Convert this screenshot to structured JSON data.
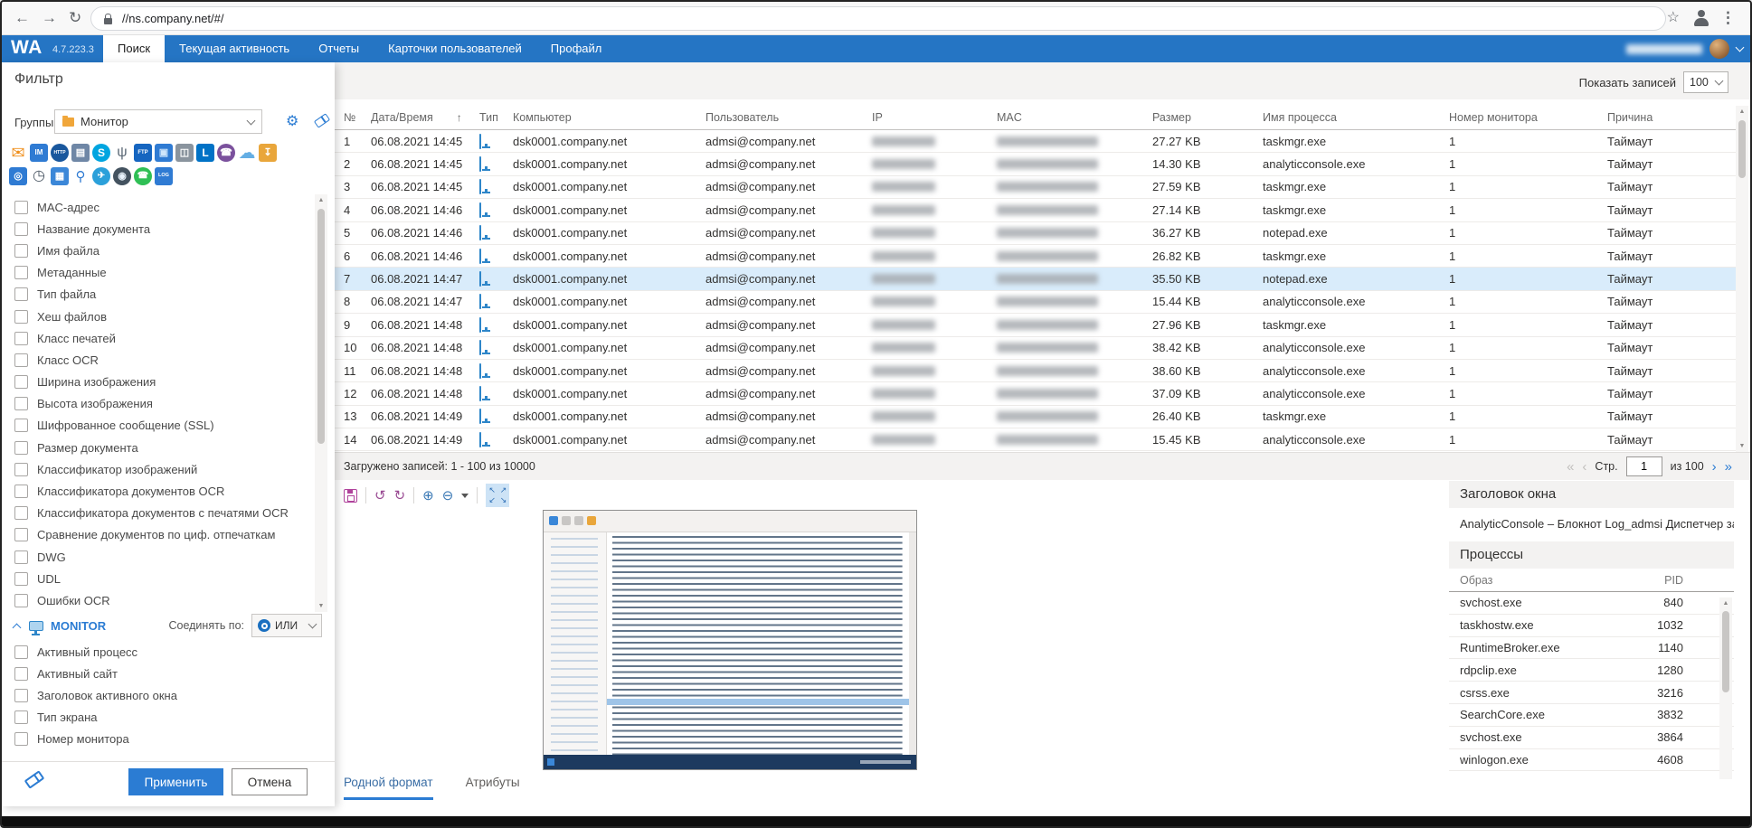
{
  "browser": {
    "url": "//ns.company.net/#/"
  },
  "navbar": {
    "logo": "WA",
    "version": "4.7.223.3",
    "tabs": [
      "Поиск",
      "Текущая активность",
      "Отчеты",
      "Карточки пользователей",
      "Профайл"
    ],
    "active_tab": "Поиск"
  },
  "filter": {
    "title": "Фильтр",
    "groups_label": "Группы",
    "groups_value": "Монитор",
    "channel_icons_row1": [
      {
        "name": "mail-icon",
        "glyph": "✉",
        "bg": "",
        "fg": "#ef8f1c",
        "fs": 18
      },
      {
        "name": "im-icon",
        "glyph": "IM",
        "bg": "#2f7bd3",
        "fg": "#ffffff",
        "fs": 8
      },
      {
        "name": "http-icon",
        "glyph": "HTTP",
        "bg": "#19579d",
        "fg": "#ffffff",
        "fs": 5,
        "round": true
      },
      {
        "name": "printer-icon",
        "glyph": "▤",
        "bg": "#6f87a6",
        "fg": "#ffffff",
        "fs": 11
      },
      {
        "name": "skype-icon",
        "glyph": "S",
        "bg": "#00a5e0",
        "fg": "#ffffff",
        "fs": 12,
        "round": true
      },
      {
        "name": "usb-icon",
        "glyph": "ψ",
        "bg": "",
        "fg": "#5d6a77",
        "fs": 16
      },
      {
        "name": "ftp-icon",
        "glyph": "FTP",
        "bg": "#1565c0",
        "fg": "#ffffff",
        "fs": 6
      },
      {
        "name": "network-icon",
        "glyph": "▣",
        "bg": "#2f7bd3",
        "fg": "#cfe6fb",
        "fs": 11
      },
      {
        "name": "device-clock-icon",
        "glyph": "◫",
        "bg": "#8a949e",
        "fg": "#ffffff",
        "fs": 11
      },
      {
        "name": "lync-icon",
        "glyph": "L",
        "bg": "#0072c6",
        "fg": "#ffffff",
        "fs": 12
      },
      {
        "name": "viber-icon",
        "glyph": "☎",
        "bg": "#7b519d",
        "fg": "#ffffff",
        "fs": 11,
        "round": true
      },
      {
        "name": "cloud-icon",
        "glyph": "☁",
        "bg": "",
        "fg": "#64aee4",
        "fs": 19
      },
      {
        "name": "folder-import-icon",
        "glyph": "↧",
        "bg": "#e9a63b",
        "fg": "#ffffff",
        "fs": 11
      }
    ],
    "channel_icons_row2": [
      {
        "name": "monitor-search-icon",
        "glyph": "◎",
        "bg": "#2f7bd3",
        "fg": "#ffffff",
        "fs": 11
      },
      {
        "name": "clock-icon",
        "glyph": "◷",
        "bg": "",
        "fg": "#4d5966",
        "fs": 16
      },
      {
        "name": "calendar-info-icon",
        "glyph": "▦",
        "bg": "#3b87d8",
        "fg": "#ffffff",
        "fs": 11
      },
      {
        "name": "microphone-icon",
        "glyph": "⚲",
        "bg": "",
        "fg": "#2f7bd3",
        "fs": 15
      },
      {
        "name": "telegram-icon",
        "glyph": "✈",
        "bg": "#2ba0da",
        "fg": "#ffffff",
        "fs": 10,
        "round": true
      },
      {
        "name": "webcam-icon",
        "glyph": "◉",
        "bg": "#43525f",
        "fg": "#e8f2fb",
        "fs": 11,
        "round": true
      },
      {
        "name": "whatsapp-icon",
        "glyph": "☎",
        "bg": "#2fbf55",
        "fg": "#ffffff",
        "fs": 10,
        "round": true
      },
      {
        "name": "log-monitor-icon",
        "glyph": "LOG",
        "bg": "#2f7bd3",
        "fg": "#ffffff",
        "fs": 5.5
      }
    ],
    "checkboxes": [
      "MAC-адрес",
      "Название документа",
      "Имя файла",
      "Метаданные",
      "Тип файла",
      "Хеш файлов",
      "Класс печатей",
      "Класс OCR",
      "Ширина изображения",
      "Высота изображения",
      "Шифрованное сообщение (SSL)",
      "Размер документа",
      "Классификатор изображений",
      "Классификатора документов OCR",
      "Классификатора документов с печатями OCR",
      "Сравнение документов по циф. отпечаткам",
      "DWG",
      "UDL",
      "Ошибки OCR"
    ],
    "monitor_section": {
      "label": "MONITOR",
      "join_label": "Соединять по:",
      "join_value": "ИЛИ",
      "items": [
        "Активный процесс",
        "Активный сайт",
        "Заголовок активного окна",
        "Тип экрана",
        "Номер монитора"
      ]
    },
    "apply_label": "Применить",
    "cancel_label": "Отмена"
  },
  "results": {
    "show_records_label": "Показать записей",
    "show_records_value": "100",
    "columns": [
      "№",
      "Дата/Время",
      "Тип",
      "Компьютер",
      "Пользователь",
      "IP",
      "MAC",
      "Размер",
      "Имя процесса",
      "Номер монитора",
      "Причина"
    ],
    "selected_row_num": "7",
    "rows": [
      {
        "num": "1",
        "datetime": "06.08.2021 14:45",
        "computer": "dsk0001.company.net",
        "user": "admsi@company.net",
        "size": "27.27 KB",
        "process": "taskmgr.exe",
        "monitor": "1",
        "reason": "Таймаут"
      },
      {
        "num": "2",
        "datetime": "06.08.2021 14:45",
        "computer": "dsk0001.company.net",
        "user": "admsi@company.net",
        "size": "14.30 KB",
        "process": "analyticconsole.exe",
        "monitor": "1",
        "reason": "Таймаут"
      },
      {
        "num": "3",
        "datetime": "06.08.2021 14:45",
        "computer": "dsk0001.company.net",
        "user": "admsi@company.net",
        "size": "27.59 KB",
        "process": "taskmgr.exe",
        "monitor": "1",
        "reason": "Таймаут"
      },
      {
        "num": "4",
        "datetime": "06.08.2021 14:46",
        "computer": "dsk0001.company.net",
        "user": "admsi@company.net",
        "size": "27.14 KB",
        "process": "taskmgr.exe",
        "monitor": "1",
        "reason": "Таймаут"
      },
      {
        "num": "5",
        "datetime": "06.08.2021 14:46",
        "computer": "dsk0001.company.net",
        "user": "admsi@company.net",
        "size": "36.27 KB",
        "process": "notepad.exe",
        "monitor": "1",
        "reason": "Таймаут"
      },
      {
        "num": "6",
        "datetime": "06.08.2021 14:46",
        "computer": "dsk0001.company.net",
        "user": "admsi@company.net",
        "size": "26.82 KB",
        "process": "taskmgr.exe",
        "monitor": "1",
        "reason": "Таймаут"
      },
      {
        "num": "7",
        "datetime": "06.08.2021 14:47",
        "computer": "dsk0001.company.net",
        "user": "admsi@company.net",
        "size": "35.50 KB",
        "process": "notepad.exe",
        "monitor": "1",
        "reason": "Таймаут"
      },
      {
        "num": "8",
        "datetime": "06.08.2021 14:47",
        "computer": "dsk0001.company.net",
        "user": "admsi@company.net",
        "size": "15.44 KB",
        "process": "analyticconsole.exe",
        "monitor": "1",
        "reason": "Таймаут"
      },
      {
        "num": "9",
        "datetime": "06.08.2021 14:48",
        "computer": "dsk0001.company.net",
        "user": "admsi@company.net",
        "size": "27.96 KB",
        "process": "taskmgr.exe",
        "monitor": "1",
        "reason": "Таймаут"
      },
      {
        "num": "10",
        "datetime": "06.08.2021 14:48",
        "computer": "dsk0001.company.net",
        "user": "admsi@company.net",
        "size": "38.42 KB",
        "process": "analyticconsole.exe",
        "monitor": "1",
        "reason": "Таймаут"
      },
      {
        "num": "11",
        "datetime": "06.08.2021 14:48",
        "computer": "dsk0001.company.net",
        "user": "admsi@company.net",
        "size": "38.60 KB",
        "process": "analyticconsole.exe",
        "monitor": "1",
        "reason": "Таймаут"
      },
      {
        "num": "12",
        "datetime": "06.08.2021 14:48",
        "computer": "dsk0001.company.net",
        "user": "admsi@company.net",
        "size": "37.09 KB",
        "process": "analyticconsole.exe",
        "monitor": "1",
        "reason": "Таймаут"
      },
      {
        "num": "13",
        "datetime": "06.08.2021 14:49",
        "computer": "dsk0001.company.net",
        "user": "admsi@company.net",
        "size": "26.40 KB",
        "process": "taskmgr.exe",
        "monitor": "1",
        "reason": "Таймаут"
      },
      {
        "num": "14",
        "datetime": "06.08.2021 14:49",
        "computer": "dsk0001.company.net",
        "user": "admsi@company.net",
        "size": "15.45 KB",
        "process": "analyticconsole.exe",
        "monitor": "1",
        "reason": "Таймаут"
      }
    ],
    "footer": {
      "loaded_text": "Загружено записей: 1 - 100 из 10000",
      "page_label": "Стр.",
      "page_value": "1",
      "pages_total": "из 100"
    }
  },
  "preview": {
    "tabs": [
      {
        "label": "Родной формат",
        "active": true
      },
      {
        "label": "Атрибуты",
        "active": false
      }
    ]
  },
  "details": {
    "window_title_header": "Заголовок окна",
    "window_title_value": "AnalyticConsole – Блокнот Log_admsi Диспетчер задач Фа",
    "processes_header": "Процессы",
    "processes_columns": [
      "Образ",
      "PID"
    ],
    "processes": [
      [
        "svchost.exe",
        "840"
      ],
      [
        "taskhostw.exe",
        "1032"
      ],
      [
        "RuntimeBroker.exe",
        "1140"
      ],
      [
        "rdpclip.exe",
        "1280"
      ],
      [
        "csrss.exe",
        "3216"
      ],
      [
        "SearchCore.exe",
        "3832"
      ],
      [
        "svchost.exe",
        "3864"
      ],
      [
        "winlogon.exe",
        "4608"
      ]
    ]
  }
}
